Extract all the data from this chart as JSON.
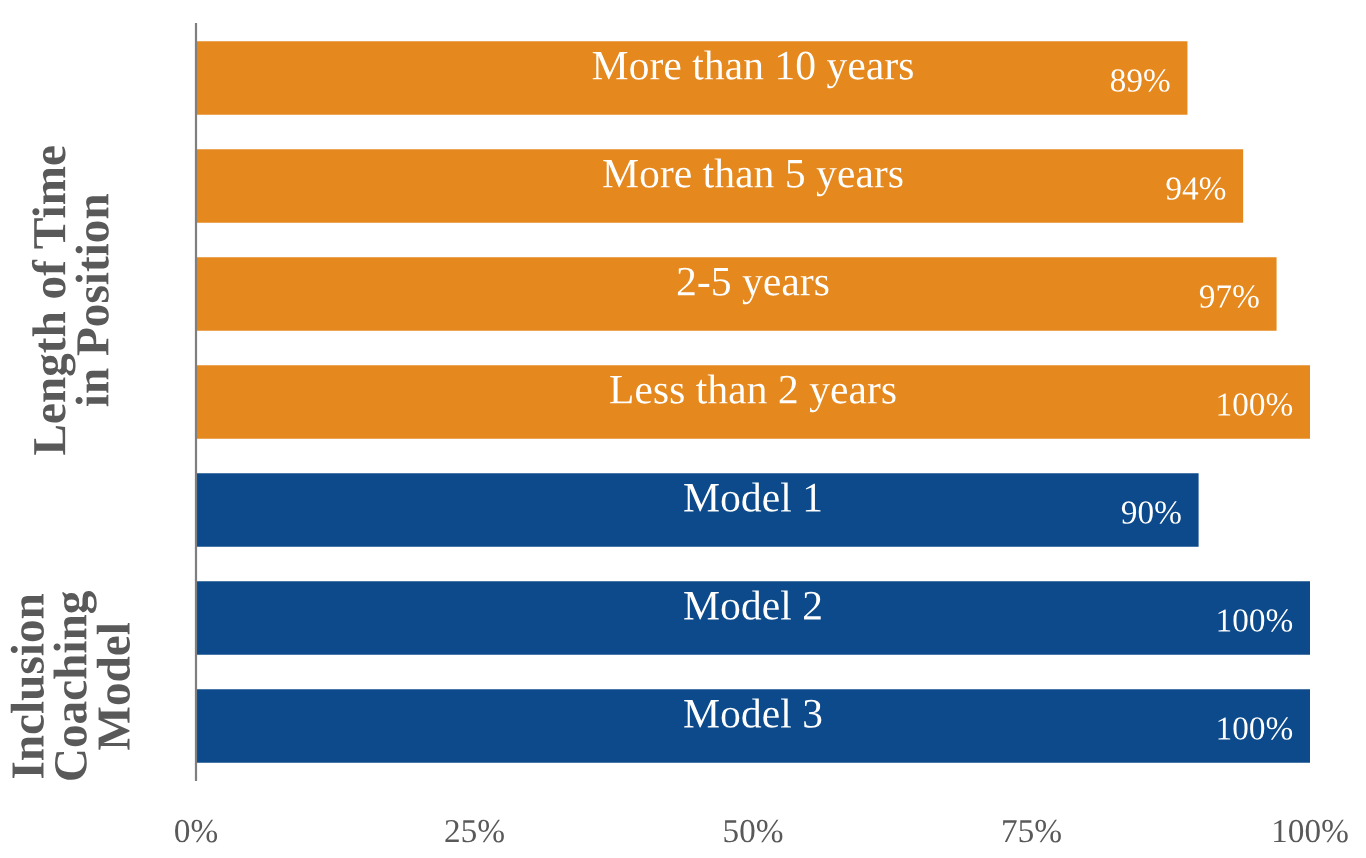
{
  "chart_data": {
    "type": "bar",
    "orientation": "horizontal",
    "categories": [
      "More than 10 years",
      "More than 5 years",
      "2-5 years",
      "Less than 2 years",
      "Model 1",
      "Model 2",
      "Model 3"
    ],
    "values": [
      89,
      94,
      97,
      100,
      90,
      100,
      100
    ],
    "value_labels": [
      "89%",
      "94%",
      "97%",
      "100%",
      "90%",
      "100%",
      "100%"
    ],
    "colors": [
      "#e5891f",
      "#e5891f",
      "#e5891f",
      "#e5891f",
      "#0c4a8b",
      "#0c4a8b",
      "#0c4a8b"
    ],
    "xlim": [
      0,
      100
    ],
    "xticks": [
      {
        "value": 0,
        "label": "0%"
      },
      {
        "value": 25,
        "label": "25%"
      },
      {
        "value": 50,
        "label": "50%"
      },
      {
        "value": 75,
        "label": "75%"
      },
      {
        "value": 100,
        "label": "100%"
      }
    ],
    "annotations": [
      "Length of Time\nin Position",
      "Inclusion\nCoaching\nModel"
    ],
    "grid": false,
    "legend": false
  }
}
